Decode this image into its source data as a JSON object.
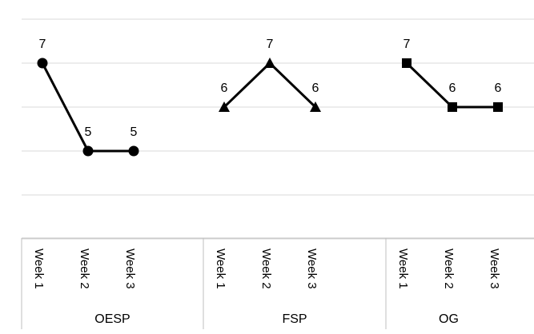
{
  "chart_data": {
    "type": "line",
    "title": "",
    "xlabel": "",
    "ylabel": "",
    "ylim": [
      3,
      8
    ],
    "grid": "horizontal",
    "legend": "none",
    "groups": [
      {
        "name": "OESP",
        "categories": [
          "Week 1",
          "Week 2",
          "Week 3"
        ],
        "values": [
          7,
          5,
          5
        ],
        "marker": "circle"
      },
      {
        "name": "FSP",
        "categories": [
          "Week 1",
          "Week 2",
          "Week 3"
        ],
        "values": [
          6,
          7,
          6
        ],
        "marker": "triangle"
      },
      {
        "name": "OG",
        "categories": [
          "Week 1",
          "Week 2",
          "Week 3"
        ],
        "values": [
          7,
          6,
          6
        ],
        "marker": "square"
      }
    ],
    "colors": {
      "line": "#000000",
      "grid": "#d9d9d9",
      "axis": "#bfbfbf",
      "background": "#ffffff"
    }
  }
}
